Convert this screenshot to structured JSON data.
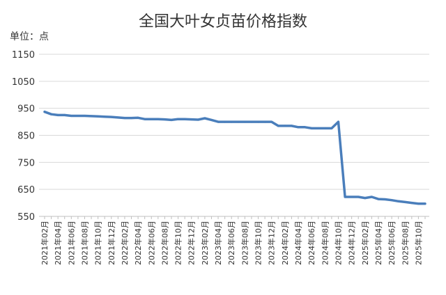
{
  "chart_data": {
    "type": "line",
    "title": "全国大叶女贞苗价格指数",
    "unit_label": "单位：点",
    "xlabel": "",
    "ylabel": "",
    "ylim": [
      550,
      1150
    ],
    "yticks": [
      550,
      650,
      750,
      850,
      950,
      1050,
      1150
    ],
    "grid": true,
    "legend": "none",
    "line_color": "#4a7ebb",
    "grid_color": "#d9d9d9",
    "x_tick_labels": [
      "2021年02月",
      "2021年04月",
      "2021年06月",
      "2021年08月",
      "2021年10月",
      "2021年12月",
      "2022年02月",
      "2022年04月",
      "2022年06月",
      "2022年08月",
      "2022年10月",
      "2022年12月",
      "2023年02月",
      "2023年04月",
      "2023年06月",
      "2023年08月",
      "2023年10月",
      "2023年12月",
      "2024年02月",
      "2024年04月",
      "2024年06月",
      "2024年08月",
      "2024年10月",
      "2024年12月",
      "2025年02月",
      "2025年04月",
      "2025年06月",
      "2025年08月",
      "2025年10月"
    ],
    "x": [
      "2021年02月",
      "2021年03月",
      "2021年04月",
      "2021年05月",
      "2021年06月",
      "2021年07月",
      "2021年08月",
      "2021年09月",
      "2021年10月",
      "2021年11月",
      "2021年12月",
      "2022年01月",
      "2022年02月",
      "2022年03月",
      "2022年04月",
      "2022年05月",
      "2022年06月",
      "2022年07月",
      "2022年08月",
      "2022年09月",
      "2022年10月",
      "2022年11月",
      "2022年12月",
      "2023年01月",
      "2023年02月",
      "2023年03月",
      "2023年04月",
      "2023年05月",
      "2023年06月",
      "2023年07月",
      "2023年08月",
      "2023年09月",
      "2023年10月",
      "2023年11月",
      "2023年12月",
      "2024年01月",
      "2024年02月",
      "2024年03月",
      "2024年04月",
      "2024年05月",
      "2024年06月",
      "2024年07月",
      "2024年08月",
      "2024年09月",
      "2024年10月",
      "2024年11月",
      "2024年12月",
      "2025年01月",
      "2025年02月",
      "2025年03月",
      "2025年04月",
      "2025年05月",
      "2025年06月",
      "2025年07月",
      "2025年08月",
      "2025年09月",
      "2025年10月",
      "2025年11月"
    ],
    "values": [
      937,
      928,
      925,
      925,
      922,
      922,
      922,
      921,
      920,
      919,
      918,
      916,
      914,
      914,
      915,
      910,
      910,
      910,
      909,
      907,
      910,
      910,
      909,
      908,
      913,
      907,
      900,
      900,
      900,
      900,
      900,
      900,
      900,
      900,
      900,
      885,
      885,
      885,
      880,
      880,
      876,
      876,
      876,
      876,
      900,
      622,
      622,
      622,
      618,
      622,
      614,
      613,
      610,
      606,
      603,
      600,
      597,
      597
    ]
  }
}
